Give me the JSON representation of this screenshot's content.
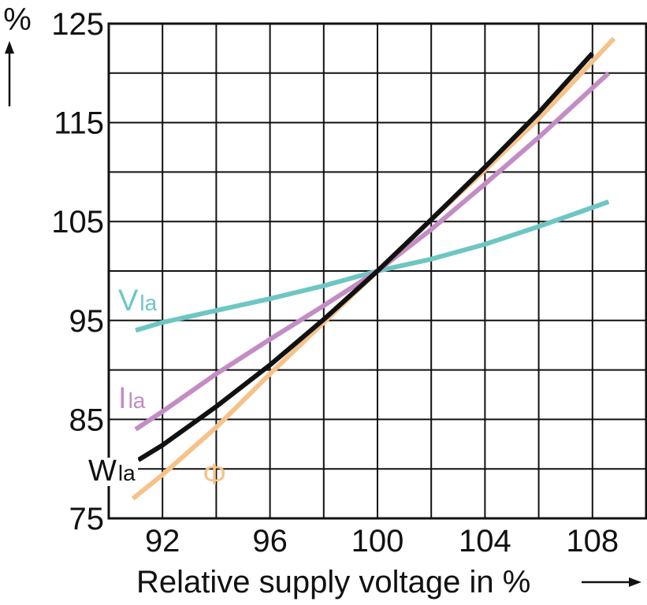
{
  "chart_data": {
    "type": "line",
    "xlabel": "Relative supply voltage in %",
    "ylabel": "%",
    "xlim": [
      90,
      110
    ],
    "ylim": [
      75,
      125
    ],
    "xticks": [
      92,
      96,
      100,
      104,
      108
    ],
    "yticks": [
      75,
      85,
      95,
      105,
      115,
      125
    ],
    "grid": true,
    "series": [
      {
        "name": "VIa",
        "label_main": "V",
        "label_sub": "la",
        "color": "#6ec6c3",
        "x": [
          91,
          92,
          94,
          96,
          98,
          100,
          102,
          104,
          106,
          108.6
        ],
        "y": [
          94,
          94.8,
          96,
          97.2,
          98.5,
          100,
          101.2,
          102.7,
          104.5,
          107
        ]
      },
      {
        "name": "IIa",
        "label_main": "I",
        "label_sub": "la",
        "color": "#c48cc4",
        "x": [
          91,
          92,
          94,
          96,
          98,
          100,
          102,
          104,
          106,
          108.6
        ],
        "y": [
          84,
          85.8,
          89.6,
          93.1,
          96.5,
          100,
          104.2,
          108.8,
          113.5,
          120
        ]
      },
      {
        "name": "WIa",
        "label_main": "W",
        "label_sub": "la",
        "color": "#111111",
        "x": [
          91.1,
          92,
          94,
          96,
          98,
          100,
          102,
          104,
          106,
          108
        ],
        "y": [
          80.9,
          82.4,
          86.3,
          90.5,
          95.1,
          100,
          105.2,
          110.5,
          116,
          122
        ]
      },
      {
        "name": "Φ",
        "label_main": "Φ",
        "label_sub": "",
        "color": "#f5c28a",
        "x": [
          90.9,
          92,
          94,
          96,
          98,
          100,
          102,
          104,
          106,
          108.8
        ],
        "y": [
          77,
          79.4,
          84.2,
          89.6,
          94.8,
          100,
          105.2,
          110.2,
          115.4,
          123.5
        ]
      }
    ]
  }
}
